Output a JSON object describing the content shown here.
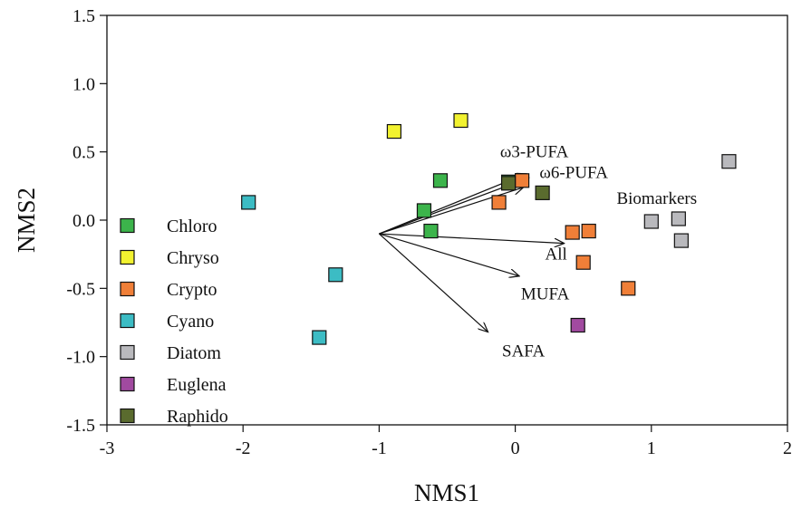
{
  "chart_data": {
    "type": "scatter",
    "xlabel": "NMS1",
    "ylabel": "NMS2",
    "xlim": [
      -3,
      2
    ],
    "ylim": [
      -1.5,
      1.5
    ],
    "xticks": [
      -3,
      -2,
      -1,
      0,
      1,
      2
    ],
    "yticks": [
      -1.5,
      -1.0,
      -0.5,
      0.0,
      0.5,
      1.0,
      1.5
    ],
    "xtick_labels": [
      "-3",
      "-2",
      "-1",
      "0",
      "1",
      "2"
    ],
    "ytick_labels": [
      "-1.5",
      "-1.0",
      "-0.5",
      "0.0",
      "0.5",
      "1.0",
      "1.5"
    ],
    "grid": false,
    "legend_position": "left",
    "series": [
      {
        "name": "Chloro",
        "color": "#3cb44b",
        "points": [
          [
            -0.55,
            0.29
          ],
          [
            -0.67,
            0.07
          ],
          [
            -0.62,
            -0.08
          ],
          [
            -0.05,
            0.28
          ]
        ]
      },
      {
        "name": "Chryso",
        "color": "#f2f230",
        "points": [
          [
            -0.89,
            0.65
          ],
          [
            -0.4,
            0.73
          ]
        ]
      },
      {
        "name": "Crypto",
        "color": "#f07f38",
        "points": [
          [
            0.05,
            0.29
          ],
          [
            -0.12,
            0.13
          ],
          [
            0.42,
            -0.09
          ],
          [
            0.54,
            -0.08
          ],
          [
            0.5,
            -0.31
          ],
          [
            0.83,
            -0.5
          ]
        ]
      },
      {
        "name": "Cyano",
        "color": "#3cbcc4",
        "points": [
          [
            -1.96,
            0.13
          ],
          [
            -1.32,
            -0.4
          ],
          [
            -1.44,
            -0.86
          ]
        ]
      },
      {
        "name": "Diatom",
        "color": "#b9b9bd",
        "points": [
          [
            1.57,
            0.43
          ],
          [
            1.0,
            -0.01
          ],
          [
            1.2,
            0.01
          ],
          [
            1.22,
            -0.15
          ]
        ]
      },
      {
        "name": "Euglena",
        "color": "#a14aa0",
        "points": [
          [
            0.46,
            -0.77
          ]
        ]
      },
      {
        "name": "Raphido",
        "color": "#5a6b2e",
        "points": [
          [
            0.2,
            0.2
          ],
          [
            -0.05,
            0.27
          ]
        ]
      }
    ],
    "vectors": {
      "origin": [
        -1.0,
        -0.1
      ],
      "items": [
        {
          "label": "ω3-PUFA",
          "end": [
            0.08,
            0.34
          ],
          "label_pos": [
            0.14,
            0.5
          ]
        },
        {
          "label": "ω6-PUFA",
          "end": [
            0.1,
            0.31
          ],
          "label_pos": [
            0.43,
            0.35
          ]
        },
        {
          "label": "Biomarkers",
          "end": [
            0.06,
            0.24
          ],
          "label_pos": [
            1.04,
            0.16
          ]
        },
        {
          "label": "All",
          "end": [
            0.36,
            -0.17
          ],
          "label_pos": [
            0.3,
            -0.25
          ]
        },
        {
          "label": "MUFA",
          "end": [
            0.03,
            -0.41
          ],
          "label_pos": [
            0.22,
            -0.54
          ]
        },
        {
          "label": "SAFA",
          "end": [
            -0.2,
            -0.82
          ],
          "label_pos": [
            0.06,
            -0.96
          ]
        }
      ]
    }
  }
}
